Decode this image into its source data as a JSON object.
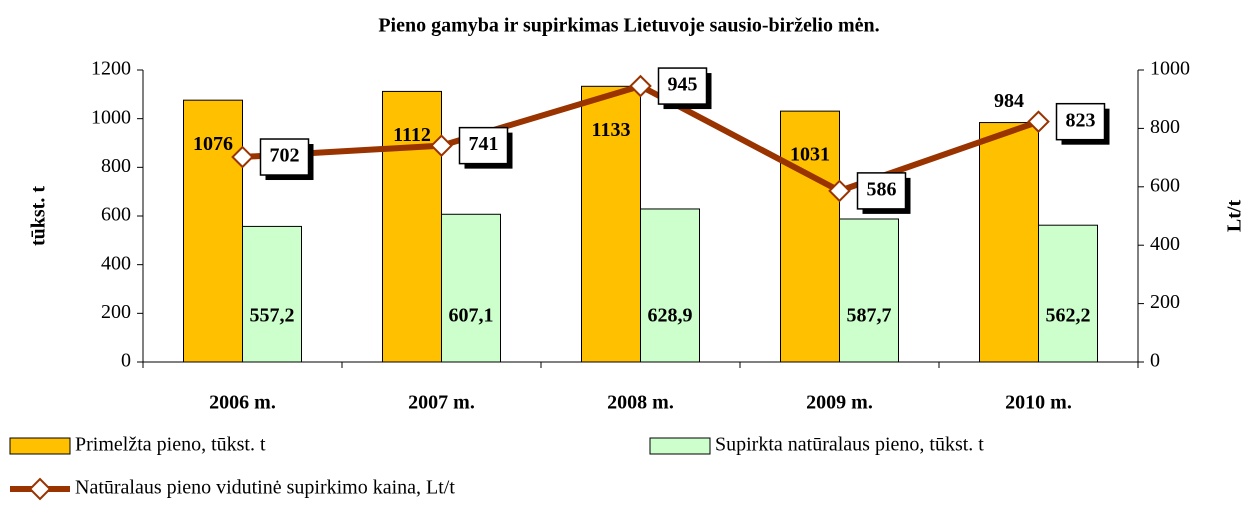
{
  "chart_data": {
    "type": "bar",
    "title": "Pieno gamyba ir supirkimas Lietuvoje sausio-birželio mėn.",
    "categories": [
      "2006 m.",
      "2007 m.",
      "2008 m.",
      "2009 m.",
      "2010 m."
    ],
    "series": [
      {
        "name": "Primelžta pieno, tūkst. t",
        "color": "#ffc000",
        "values": [
          1076,
          1112,
          1133,
          1031,
          984
        ]
      },
      {
        "name": "Supirkta natūralaus pieno, tūkst. t",
        "color": "#ccffcc",
        "values": [
          557.2,
          607.1,
          628.9,
          587.7,
          562.2
        ],
        "value_labels": [
          "557,2",
          "607,1",
          "628,9",
          "587,7",
          "562,2"
        ]
      },
      {
        "name": "Natūralaus pieno vidutinė supirkimo kaina, Lt/t",
        "type": "line",
        "axis": "y2",
        "color": "#993300",
        "values": [
          702,
          741,
          945,
          586,
          823
        ]
      }
    ],
    "ylabel": "tūkst. t",
    "y2label": "Lt/t",
    "ylim": [
      0,
      1200
    ],
    "yticks": [
      0,
      200,
      400,
      600,
      800,
      1000,
      1200
    ],
    "y2lim": [
      0,
      1000
    ],
    "y2ticks": [
      0,
      200,
      400,
      600,
      800,
      1000
    ]
  }
}
